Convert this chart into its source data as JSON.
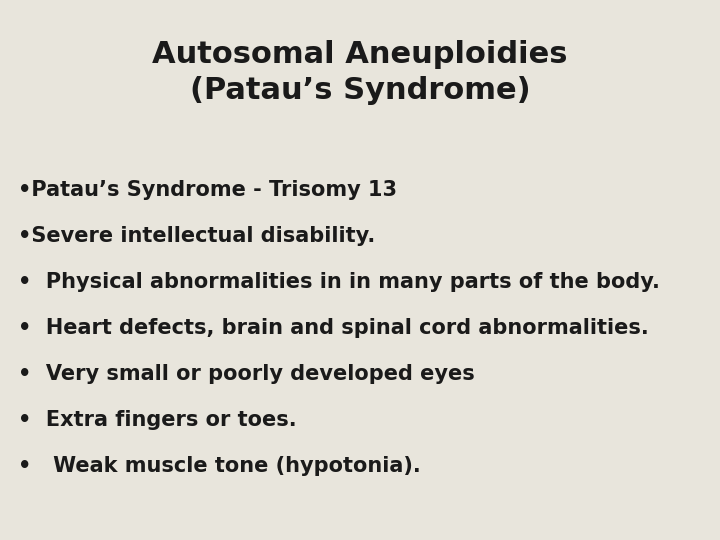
{
  "background_color": "#e8e5dc",
  "title_line1": "Autosomal Aneuploidies",
  "title_line2": "(Patau’s Syndrome)",
  "title_fontsize": 22,
  "title_color": "#1a1a1a",
  "title_fontweight": "bold",
  "bullets": [
    "•Patau’s Syndrome - Trisomy 13",
    "•Severe intellectual disability.",
    "•  Physical abnormalities in in many parts of the body.",
    "•  Heart defects, brain and spinal cord abnormalities.",
    "•  Very small or poorly developed eyes",
    "•  Extra fingers or toes.",
    "•   Weak muscle tone (hypotonia)."
  ],
  "text_color": "#1a1a1a",
  "body_fontsize": 15,
  "body_fontweight": "bold",
  "figsize": [
    7.2,
    5.4
  ],
  "dpi": 100
}
